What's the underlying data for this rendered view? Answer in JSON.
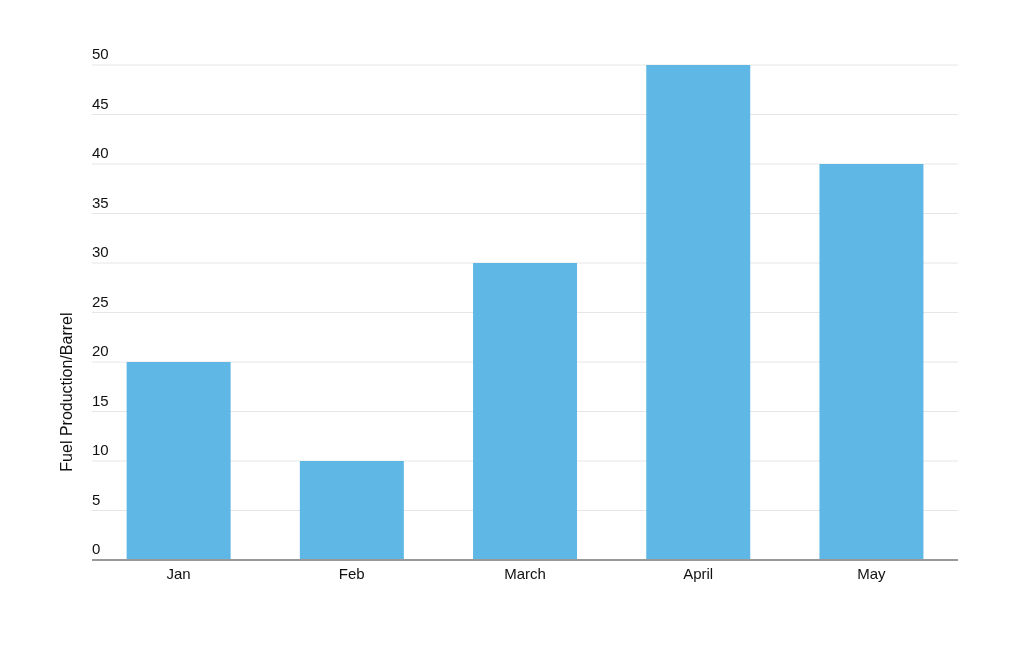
{
  "chart_data": {
    "type": "bar",
    "ylabel": "Fuel Production/Barrel",
    "categories": [
      "Jan",
      "Feb",
      "March",
      "April",
      "May"
    ],
    "values": [
      20,
      10,
      30,
      50,
      40
    ],
    "color": "#5fb7e5",
    "ylim": [
      0,
      50
    ],
    "yticks": [
      0,
      5,
      10,
      15,
      20,
      25,
      30,
      35,
      40,
      45,
      50
    ],
    "grid": "y"
  }
}
